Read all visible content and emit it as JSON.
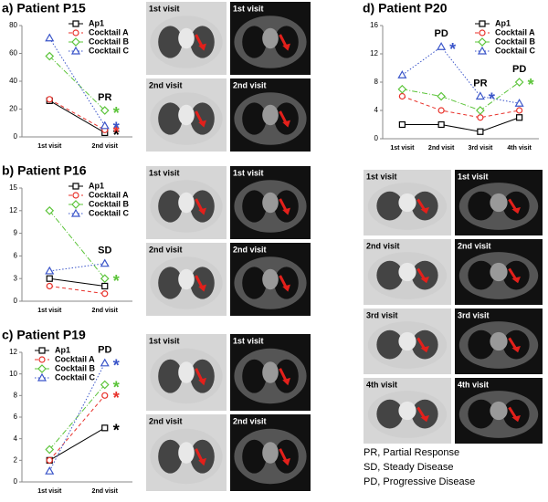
{
  "chart_data": [
    {
      "type": "line",
      "title": "a) Patient P15",
      "categories": [
        "1st visit",
        "2nd visit"
      ],
      "ylim": [
        0,
        80
      ],
      "yticks": [
        0,
        20,
        40,
        60,
        80
      ],
      "legend": "upper right",
      "series": [
        {
          "name": "Ap1",
          "color": "#000000",
          "marker": "square",
          "line_style": "solid",
          "values": [
            26,
            3
          ]
        },
        {
          "name": "Cocktail A",
          "color": "#e8312a",
          "marker": "circle",
          "line_style": "dashed",
          "values": [
            27,
            5
          ]
        },
        {
          "name": "Cocktail B",
          "color": "#5cc43a",
          "marker": "diamond",
          "line_style": "dashdot",
          "values": [
            58,
            19
          ]
        },
        {
          "name": "Cocktail C",
          "color": "#3a55c9",
          "marker": "triangle",
          "line_style": "dotted",
          "values": [
            71,
            8
          ]
        }
      ],
      "annotations": [
        {
          "text": "PR",
          "at": 1
        },
        {
          "text": "*",
          "at": 1,
          "series": 0
        },
        {
          "text": "*",
          "at": 1,
          "series": 1
        },
        {
          "text": "*",
          "at": 1,
          "series": 2
        },
        {
          "text": "*",
          "at": 1,
          "series": 3
        }
      ]
    },
    {
      "type": "line",
      "title": "b) Patient P16",
      "categories": [
        "1st visit",
        "2nd visit"
      ],
      "ylim": [
        0,
        15
      ],
      "yticks": [
        0,
        3,
        6,
        9,
        12,
        15
      ],
      "legend": "upper right",
      "series": [
        {
          "name": "Ap1",
          "color": "#000000",
          "marker": "square",
          "line_style": "solid",
          "values": [
            3,
            2
          ]
        },
        {
          "name": "Cocktail A",
          "color": "#e8312a",
          "marker": "circle",
          "line_style": "dashed",
          "values": [
            2,
            1
          ]
        },
        {
          "name": "Cocktail B",
          "color": "#5cc43a",
          "marker": "diamond",
          "line_style": "dashdot",
          "values": [
            12,
            3
          ]
        },
        {
          "name": "Cocktail C",
          "color": "#3a55c9",
          "marker": "triangle",
          "line_style": "dotted",
          "values": [
            4,
            5
          ]
        }
      ],
      "annotations": [
        {
          "text": "SD",
          "at": 1
        },
        {
          "text": "*",
          "at": 1,
          "series": 2
        }
      ]
    },
    {
      "type": "line",
      "title": "c) Patient P19",
      "categories": [
        "1st visit",
        "2nd visit"
      ],
      "ylim": [
        0,
        12
      ],
      "yticks": [
        0,
        2,
        4,
        6,
        8,
        10,
        12
      ],
      "legend": "upper left",
      "series": [
        {
          "name": "Ap1",
          "color": "#000000",
          "marker": "square",
          "line_style": "solid",
          "values": [
            2,
            5
          ]
        },
        {
          "name": "Cocktail A",
          "color": "#e8312a",
          "marker": "circle",
          "line_style": "dashed",
          "values": [
            2,
            8
          ]
        },
        {
          "name": "Cocktail B",
          "color": "#5cc43a",
          "marker": "diamond",
          "line_style": "dashdot",
          "values": [
            3,
            9
          ]
        },
        {
          "name": "Cocktail C",
          "color": "#3a55c9",
          "marker": "triangle",
          "line_style": "dotted",
          "values": [
            1,
            11
          ]
        }
      ],
      "annotations": [
        {
          "text": "PD",
          "at": 1
        },
        {
          "text": "*",
          "at": 1,
          "series": 0
        },
        {
          "text": "*",
          "at": 1,
          "series": 1
        },
        {
          "text": "*",
          "at": 1,
          "series": 2
        },
        {
          "text": "*",
          "at": 1,
          "series": 3
        }
      ]
    },
    {
      "type": "line",
      "title": "d) Patient P20",
      "categories": [
        "1st visit",
        "2nd visit",
        "3rd visit",
        "4th visit"
      ],
      "ylim": [
        0,
        16
      ],
      "yticks": [
        0,
        4,
        8,
        12,
        16
      ],
      "legend": "upper right",
      "series": [
        {
          "name": "Ap1",
          "color": "#000000",
          "marker": "square",
          "line_style": "solid",
          "values": [
            2,
            2,
            1,
            3
          ]
        },
        {
          "name": "Cocktail A",
          "color": "#e8312a",
          "marker": "circle",
          "line_style": "dashed",
          "values": [
            6,
            4,
            3,
            4
          ]
        },
        {
          "name": "Cocktail B",
          "color": "#5cc43a",
          "marker": "diamond",
          "line_style": "dashdot",
          "values": [
            7,
            6,
            4,
            8
          ]
        },
        {
          "name": "Cocktail C",
          "color": "#3a55c9",
          "marker": "triangle",
          "line_style": "dotted",
          "values": [
            9,
            13,
            6,
            5
          ]
        }
      ],
      "annotations": [
        {
          "text": "PD",
          "at": 1
        },
        {
          "text": "*",
          "at": 1,
          "series": 3
        },
        {
          "text": "PR",
          "at": 2
        },
        {
          "text": "*",
          "at": 2,
          "series": 3
        },
        {
          "text": "PD",
          "at": 3
        },
        {
          "text": "*",
          "at": 3,
          "series": 2
        }
      ]
    }
  ],
  "ct_images": [
    [
      "1st visit",
      "1st visit",
      "2nd visit",
      "2nd visit"
    ],
    [
      "1st visit",
      "1st visit",
      "2nd visit",
      "2nd visit"
    ],
    [
      "1st visit",
      "1st visit",
      "2nd visit",
      "2nd visit"
    ],
    [
      "1st visit",
      "1st visit",
      "2nd visit",
      "2nd visit",
      "3rd visit",
      "3rd visit",
      "4th visit",
      "4th visit"
    ]
  ],
  "notes": [
    "PR, Partial Response",
    "SD, Steady Disease",
    "PD, Progressive Disease"
  ]
}
